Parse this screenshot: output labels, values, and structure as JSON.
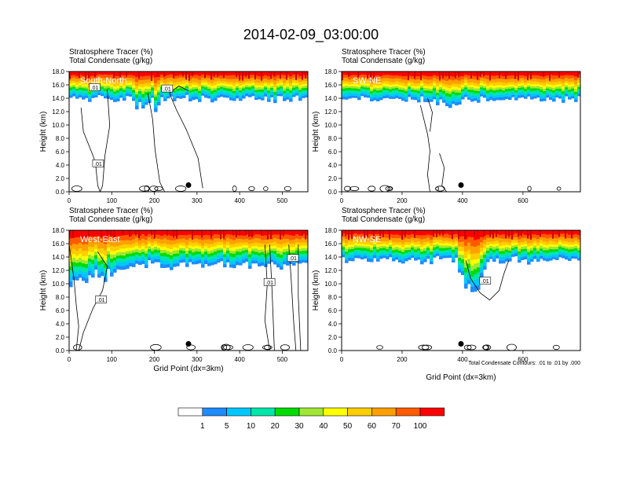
{
  "title": "2014-02-09_03:00:00",
  "panel_title_line1": "Stratosphere Tracer   (%)",
  "panel_title_line2": "Total Condensate   (g/kg)",
  "ylabel": "Height (km)",
  "xlabel": "Grid Point (dx=3km)",
  "contour_note": "Total Condensate Contours: .01 to .01 by .000",
  "contour_label": ".01",
  "colorbar": {
    "colors": [
      "#ffffff",
      "#1e8cff",
      "#00c8ff",
      "#00e6aa",
      "#00dc00",
      "#a0e632",
      "#ffff00",
      "#ffcd00",
      "#ffa000",
      "#ff5a00",
      "#ff0000"
    ],
    "labels": [
      "1",
      "5",
      "10",
      "20",
      "30",
      "40",
      "50",
      "60",
      "70",
      "100"
    ]
  },
  "chart_data": [
    {
      "type": "heatmap",
      "name": "South-North",
      "xlim": [
        0,
        560
      ],
      "ylim": [
        0,
        18
      ],
      "xticks": [
        0,
        100,
        200,
        300,
        400,
        500
      ],
      "yticks": [
        0,
        2,
        4,
        6,
        8,
        10,
        12,
        14,
        16,
        18
      ],
      "ytick_labels": [
        "0.0",
        "2.0",
        "4.0",
        "6.0",
        "8.0",
        "10.0",
        "12.0",
        "14.0",
        "16.0",
        "18.0"
      ],
      "marker": {
        "x": 280,
        "y": 1.0
      },
      "contour_labels": [
        {
          "x": 60,
          "y": 15.6
        },
        {
          "x": 68,
          "y": 4.2
        },
        {
          "x": 230,
          "y": 15.4
        }
      ]
    },
    {
      "type": "heatmap",
      "name": "SW-NE",
      "xlim": [
        0,
        790
      ],
      "ylim": [
        0,
        18
      ],
      "xticks": [
        0,
        200,
        400,
        600
      ],
      "yticks": [
        0,
        2,
        4,
        6,
        8,
        10,
        12,
        14,
        16,
        18
      ],
      "ytick_labels": [
        "0.0",
        "2.0",
        "4.0",
        "6.0",
        "8.0",
        "10.0",
        "12.0",
        "14.0",
        "16.0",
        "18.0"
      ],
      "marker": {
        "x": 395,
        "y": 1.0
      },
      "contour_labels": []
    },
    {
      "type": "heatmap",
      "name": "West-East",
      "xlim": [
        0,
        560
      ],
      "ylim": [
        0,
        18
      ],
      "xticks": [
        0,
        100,
        200,
        300,
        400,
        500
      ],
      "yticks": [
        0,
        2,
        4,
        6,
        8,
        10,
        12,
        14,
        16,
        18
      ],
      "ytick_labels": [
        "0.0",
        "2.0",
        "4.0",
        "6.0",
        "8.0",
        "10.0",
        "12.0",
        "14.0",
        "16.0",
        "18.0"
      ],
      "marker": {
        "x": 280,
        "y": 1.0
      },
      "contour_labels": [
        {
          "x": 75,
          "y": 7.6
        },
        {
          "x": 470,
          "y": 10.2
        },
        {
          "x": 525,
          "y": 13.8
        }
      ]
    },
    {
      "type": "heatmap",
      "name": "NW-SE",
      "xlim": [
        0,
        790
      ],
      "ylim": [
        0,
        18
      ],
      "xticks": [
        0,
        200,
        400,
        600
      ],
      "yticks": [
        0,
        2,
        4,
        6,
        8,
        10,
        12,
        14,
        16,
        18
      ],
      "ytick_labels": [
        "0.0",
        "2.0",
        "4.0",
        "6.0",
        "8.0",
        "10.0",
        "12.0",
        "14.0",
        "16.0",
        "18.0"
      ],
      "marker": {
        "x": 395,
        "y": 1.0
      },
      "contour_labels": [
        {
          "x": 475,
          "y": 10.4
        }
      ]
    }
  ]
}
